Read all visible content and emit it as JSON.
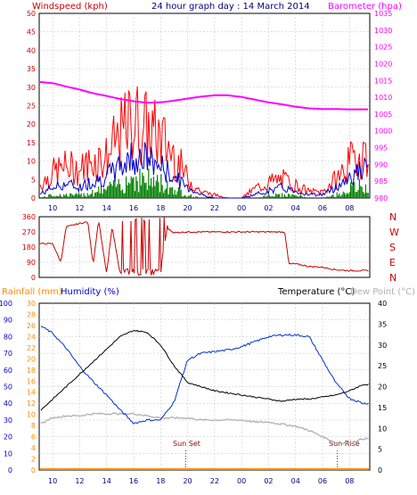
{
  "colors": {
    "wind": "#ff0000",
    "wind_avg": "#0000cc",
    "wind_low": "#008000",
    "barometer": "#ff00ff",
    "direction": "#cc0000",
    "humidity": "#0033cc",
    "temperature": "#000000",
    "dew_point": "#b0b0b0",
    "rainfall": "#ff8c00",
    "sun": "#990000",
    "grid": "#c0c0c0",
    "header_blue": "#000080",
    "axis_left": "#cc0000",
    "axis_hum": "#0000cc"
  },
  "header": {
    "wind_label": "Windspeed (kph)",
    "title": "24 hour graph day : 14 March 2014",
    "baro_label": "Barometer (hpa)"
  },
  "bottom_header": {
    "rain_label": "Rainfall (mm)",
    "humidity_label": "Humidity (%)",
    "temp_label": "Temperature (°C)",
    "dew_label": "Dew Point (°C)"
  },
  "annotations": {
    "sunset": "Sun Set",
    "sunrise": "Sun Rise"
  },
  "chart_data": [
    {
      "type": "line",
      "name": "wind-barometer",
      "x_ticks": [
        "10",
        "12",
        "14",
        "16",
        "18",
        "20",
        "22",
        "00",
        "02",
        "04",
        "06",
        "08"
      ],
      "x": [
        9,
        10,
        11,
        12,
        13,
        14,
        15,
        16,
        17,
        18,
        19,
        20,
        21,
        22,
        23,
        24,
        25,
        26,
        27,
        28,
        29,
        30,
        31,
        32,
        33
      ],
      "ylabel_left": "Windspeed (kph)",
      "ylabel_right": "Barometer (hpa)",
      "ylim_left": [
        0,
        50
      ],
      "y_ticks_left": [
        "0",
        "5",
        "10",
        "15",
        "20",
        "25",
        "30",
        "35",
        "40",
        "45",
        "50"
      ],
      "ylim_right": [
        980,
        1035
      ],
      "y_ticks_right": [
        "980",
        "985",
        "990",
        "995",
        "1000",
        "1005",
        "1010",
        "1015",
        "1020",
        "1025",
        "1030",
        "1035"
      ],
      "series": [
        {
          "name": "gust",
          "values": [
            4,
            8,
            10,
            9,
            12,
            13,
            20,
            25,
            22,
            19,
            14,
            6,
            2,
            1,
            0,
            0,
            3,
            5,
            6,
            4,
            2,
            2,
            6,
            11,
            15
          ]
        },
        {
          "name": "average",
          "values": [
            1,
            3,
            4,
            3,
            5,
            6,
            9,
            12,
            11,
            9,
            6,
            3,
            1,
            0,
            0,
            0,
            1,
            2,
            3,
            2,
            1,
            1,
            3,
            6,
            8
          ]
        },
        {
          "name": "low",
          "values": [
            0,
            1,
            1,
            1,
            2,
            3,
            5,
            7,
            6,
            5,
            3,
            1,
            0,
            0,
            0,
            0,
            0,
            1,
            1,
            1,
            0,
            0,
            1,
            3,
            4
          ]
        },
        {
          "name": "barometer",
          "values": [
            1014.6,
            1014.2,
            1013.2,
            1012.3,
            1011.2,
            1010.4,
            1009.5,
            1008.8,
            1008.4,
            1008.5,
            1009.0,
            1009.6,
            1010.2,
            1010.6,
            1010.6,
            1010.1,
            1009.3,
            1008.5,
            1007.9,
            1007.2,
            1006.7,
            1006.5,
            1006.5,
            1006.4,
            1006.4
          ]
        }
      ]
    },
    {
      "type": "line",
      "name": "wind-direction",
      "x": [
        9,
        10,
        10.6,
        11,
        12,
        12.6,
        13,
        13.4,
        14,
        14.4,
        15,
        16,
        17,
        18,
        18.5,
        19,
        20,
        22,
        24,
        26,
        27.2,
        27.5,
        28,
        29,
        30,
        31,
        32,
        33
      ],
      "ylim": [
        0,
        360
      ],
      "y_ticks": [
        "0",
        "90",
        "180",
        "270",
        "360"
      ],
      "compass_labels": [
        "N",
        "W",
        "S",
        "E",
        "N"
      ],
      "series": [
        {
          "name": "direction",
          "values": [
            200,
            200,
            90,
            300,
            320,
            330,
            80,
            340,
            20,
            300,
            20,
            10,
            10,
            15,
            290,
            265,
            270,
            270,
            270,
            270,
            270,
            80,
            80,
            65,
            60,
            45,
            40,
            40
          ]
        }
      ]
    },
    {
      "type": "line",
      "name": "humidity-temperature",
      "x": [
        9,
        10,
        11,
        12,
        13,
        14,
        15,
        16,
        17,
        18,
        19,
        20,
        21,
        22,
        23,
        24,
        25,
        26,
        27,
        28,
        29,
        30,
        31,
        32,
        33
      ],
      "ylabel_left": "Humidity (%)",
      "ylabel_left2": "Rainfall (mm)",
      "ylabel_right": "Temperature (°C)",
      "ylim_humidity": [
        0,
        100
      ],
      "y_ticks_humidity": [
        "0",
        "10",
        "20",
        "30",
        "40",
        "50",
        "60",
        "70",
        "80",
        "90",
        "100"
      ],
      "ylim_rain": [
        0,
        30
      ],
      "y_ticks_rain": [
        "0",
        "2",
        "4",
        "6",
        "8",
        "10",
        "12",
        "14",
        "16",
        "18",
        "20",
        "22",
        "24",
        "26",
        "28",
        "30"
      ],
      "ylim_temp": [
        0,
        40
      ],
      "y_ticks_temp": [
        "0",
        "5",
        "10",
        "15",
        "20",
        "25",
        "30",
        "35",
        "40"
      ],
      "series": [
        {
          "name": "humidity",
          "values": [
            87,
            82,
            73,
            62,
            53,
            45,
            36,
            28,
            30,
            30,
            41,
            66,
            70,
            71,
            72,
            74,
            77,
            80,
            81,
            81,
            80,
            66,
            52,
            43,
            40
          ]
        },
        {
          "name": "temperature",
          "values": [
            14,
            17,
            20,
            23,
            26,
            29,
            32,
            33.5,
            33,
            30,
            25,
            21,
            20,
            19,
            18.5,
            18,
            17.5,
            17,
            16.5,
            17,
            17,
            17.5,
            18,
            19,
            20.5
          ]
        },
        {
          "name": "dew_point",
          "values": [
            11,
            12.5,
            13,
            13,
            13.5,
            13.5,
            13.5,
            13.5,
            13,
            12.5,
            12.5,
            12.5,
            12,
            12,
            12,
            12,
            11.5,
            11.5,
            11,
            10.5,
            9.5,
            8,
            6.5,
            6.5,
            7.5
          ]
        },
        {
          "name": "rainfall",
          "values": [
            0,
            0,
            0,
            0,
            0,
            0,
            0,
            0,
            0,
            0,
            0,
            0,
            0,
            0,
            0,
            0,
            0,
            0,
            0,
            0,
            0,
            0,
            0,
            0,
            0
          ]
        }
      ],
      "sunset_x": 19.85,
      "sunrise_x": 31.1
    }
  ]
}
